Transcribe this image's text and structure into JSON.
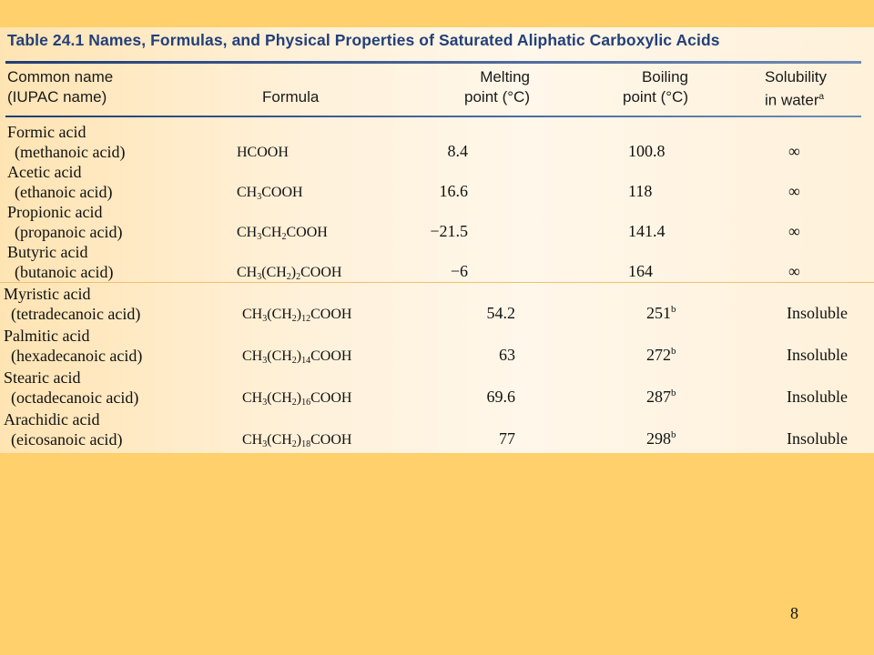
{
  "title": "Table 24.1 Names, Formulas, and Physical Properties of Saturated Aliphatic Carboxylic Acids",
  "headers": {
    "name_line1": "Common name",
    "name_line2": "(IUPAC name)",
    "formula": "Formula",
    "melting_line1": "Melting",
    "melting_line2": "point (°C)",
    "boiling_line1": "Boiling",
    "boiling_line2": "point (°C)",
    "solubility_line1": "Solubility",
    "solubility_line2": "in water",
    "solubility_footnote": "a"
  },
  "rows": [
    {
      "common": "Formic acid",
      "iupac": "(methanoic acid)",
      "formula": [
        "HCOOH"
      ],
      "melting": "8.4",
      "boiling": "100.8",
      "boiling_note": "",
      "solubility": "∞"
    },
    {
      "common": "Acetic acid",
      "iupac": "(ethanoic acid)",
      "formula": [
        "CH",
        "3",
        "COOH"
      ],
      "melting": "16.6",
      "boiling": "118",
      "boiling_note": "",
      "solubility": "∞"
    },
    {
      "common": "Propionic acid",
      "iupac": "(propanoic acid)",
      "formula": [
        "CH",
        "3",
        "CH",
        "2",
        "COOH"
      ],
      "melting": "−21.5",
      "boiling": "141.4",
      "boiling_note": "",
      "solubility": "∞"
    },
    {
      "common": "Butyric acid",
      "iupac": "(butanoic acid)",
      "formula": [
        "CH",
        "3",
        "(CH",
        "2",
        ")",
        "2",
        "COOH"
      ],
      "melting": "−6",
      "boiling": "164",
      "boiling_note": "",
      "solubility": "∞"
    },
    {
      "common": "Myristic acid",
      "iupac": "(tetradecanoic acid)",
      "formula": [
        "CH",
        "3",
        "(CH",
        "2",
        ")",
        "12",
        "COOH"
      ],
      "melting": "54.2",
      "boiling": "251",
      "boiling_note": "b",
      "solubility": "Insoluble"
    },
    {
      "common": "Palmitic acid",
      "iupac": "(hexadecanoic acid)",
      "formula": [
        "CH",
        "3",
        "(CH",
        "2",
        ")",
        "14",
        "COOH"
      ],
      "melting": "63",
      "boiling": "272",
      "boiling_note": "b",
      "solubility": "Insoluble"
    },
    {
      "common": "Stearic acid",
      "iupac": "(octadecanoic acid)",
      "formula": [
        "CH",
        "3",
        "(CH",
        "2",
        ")",
        "16",
        "COOH"
      ],
      "melting": "69.6",
      "boiling": "287",
      "boiling_note": "b",
      "solubility": "Insoluble"
    },
    {
      "common": "Arachidic acid",
      "iupac": "(eicosanoic acid)",
      "formula": [
        "CH",
        "3",
        "(CH",
        "2",
        ")",
        "18",
        "COOH"
      ],
      "melting": "77",
      "boiling": "298",
      "boiling_note": "b",
      "solubility": "Insoluble"
    }
  ],
  "page_number": "8"
}
